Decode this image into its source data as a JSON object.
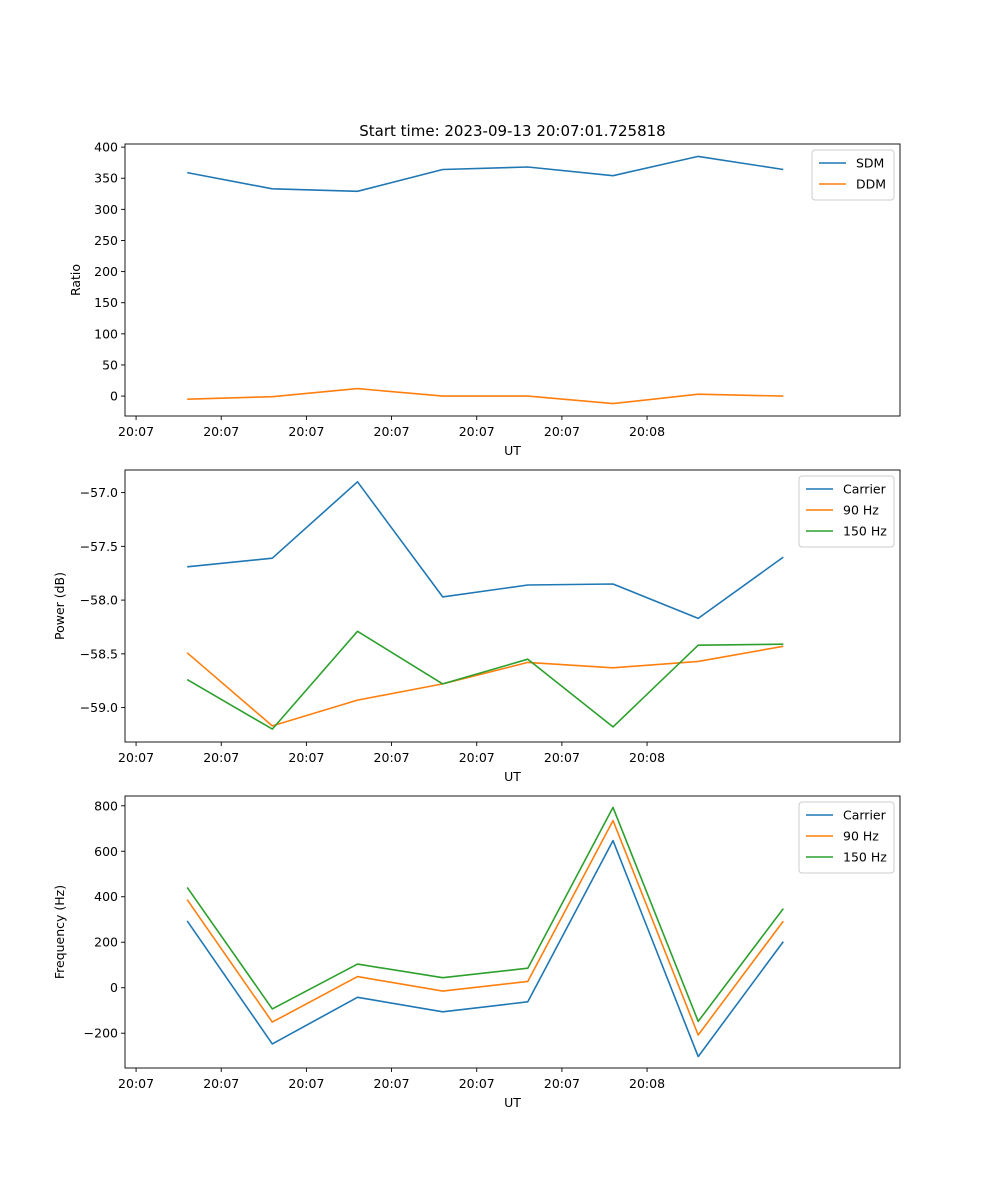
{
  "figure": {
    "title": "Start time: 2023-09-13 20:07:01.725818"
  },
  "chart_data": [
    {
      "type": "line",
      "ylabel": "Ratio",
      "xlabel": "UT",
      "xtick_labels": [
        "20:07",
        "20:07",
        "20:07",
        "20:07",
        "20:07",
        "20:07",
        "20:08"
      ],
      "xlim": [
        -0.13,
        8.97
      ],
      "ylim": [
        -32,
        405
      ],
      "yticks": [
        0,
        50,
        100,
        150,
        200,
        250,
        300,
        350,
        400
      ],
      "ytick_labels": [
        "0",
        "50",
        "100",
        "150",
        "200",
        "250",
        "300",
        "350",
        "400"
      ],
      "x": [
        0.6,
        1.6,
        2.6,
        3.6,
        4.6,
        5.6,
        6.6,
        7.6
      ],
      "legend_position": "top-right",
      "series": [
        {
          "name": "SDM",
          "color": "#1f77b4",
          "values": [
            359,
            333,
            329,
            364,
            368,
            354,
            385,
            364
          ]
        },
        {
          "name": "DDM",
          "color": "#ff7f0e",
          "values": [
            -5,
            -1,
            12,
            0,
            0,
            -12,
            3,
            0
          ]
        }
      ]
    },
    {
      "type": "line",
      "ylabel": "Power (dB)",
      "xlabel": "UT",
      "xtick_labels": [
        "20:07",
        "20:07",
        "20:07",
        "20:07",
        "20:07",
        "20:07",
        "20:08"
      ],
      "xlim": [
        -0.13,
        8.97
      ],
      "ylim": [
        -59.32,
        -56.79
      ],
      "yticks": [
        -59.0,
        -58.5,
        -58.0,
        -57.5,
        -57.0
      ],
      "ytick_labels": [
        "−59.0",
        "−58.5",
        "−58.0",
        "−57.5",
        "−57.0"
      ],
      "x": [
        0.6,
        1.6,
        2.6,
        3.6,
        4.6,
        5.6,
        6.6,
        7.6
      ],
      "legend_position": "top-right",
      "series": [
        {
          "name": "Carrier",
          "color": "#1f77b4",
          "values": [
            -57.69,
            -57.61,
            -56.9,
            -57.97,
            -57.86,
            -57.85,
            -58.17,
            -57.6
          ]
        },
        {
          "name": "90 Hz",
          "color": "#ff7f0e",
          "values": [
            -58.49,
            -59.17,
            -58.93,
            -58.78,
            -58.58,
            -58.63,
            -58.57,
            -58.43
          ]
        },
        {
          "name": "150 Hz",
          "color": "#2ca02c",
          "values": [
            -58.74,
            -59.2,
            -58.29,
            -58.78,
            -58.55,
            -59.18,
            -58.42,
            -58.41
          ]
        }
      ]
    },
    {
      "type": "line",
      "ylabel": "Frequency (Hz)",
      "xlabel": "UT",
      "xtick_labels": [
        "20:07",
        "20:07",
        "20:07",
        "20:07",
        "20:07",
        "20:07",
        "20:08"
      ],
      "xlim": [
        -0.13,
        8.97
      ],
      "ylim": [
        -353,
        843
      ],
      "yticks": [
        -200,
        0,
        200,
        400,
        600,
        800
      ],
      "ytick_labels": [
        "−200",
        "0",
        "200",
        "400",
        "600",
        "800"
      ],
      "x": [
        0.6,
        1.6,
        2.6,
        3.6,
        4.6,
        5.6,
        6.6,
        7.6
      ],
      "legend_position": "top-right",
      "series": [
        {
          "name": "Carrier",
          "color": "#1f77b4",
          "values": [
            294,
            -247,
            -42,
            -106,
            -62,
            647,
            -303,
            203
          ]
        },
        {
          "name": "90 Hz",
          "color": "#ff7f0e",
          "values": [
            387,
            -151,
            49,
            -15,
            28,
            735,
            -208,
            293
          ]
        },
        {
          "name": "150 Hz",
          "color": "#2ca02c",
          "values": [
            441,
            -93,
            104,
            44,
            86,
            793,
            -148,
            348
          ]
        }
      ]
    }
  ]
}
